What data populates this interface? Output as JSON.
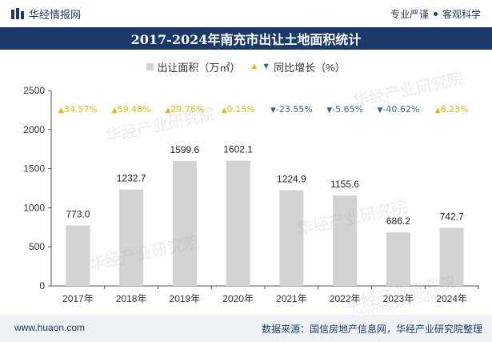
{
  "header": {
    "brand_name": "华经情报网",
    "tagline_1": "专业严谨",
    "tagline_2": "客观科学"
  },
  "watermarks": [
    "华经产业研究院",
    "www.huaon.com"
  ],
  "footer": {
    "website": "www.huaon.com",
    "source": "数据来源：国信房地产信息网，华经产业研究院整理"
  },
  "colors": {
    "bar": "#d3d3d3",
    "up": "#f0b400",
    "down": "#2e6c8c",
    "title_bg": "#1b3a6b"
  },
  "chart_data": {
    "type": "bar",
    "title": "2017-2024年南充市出让土地面积统计",
    "categories": [
      "2017年",
      "2018年",
      "2019年",
      "2020年",
      "2021年",
      "2022年",
      "2023年",
      "2024年"
    ],
    "series": [
      {
        "name": "出让面积（万㎡）",
        "values": [
          773.0,
          1232.7,
          1599.6,
          1602.1,
          1224.9,
          1155.6,
          686.2,
          742.7
        ],
        "labels": [
          "773.0",
          "1232.7",
          "1599.6",
          "1602.1",
          "1224.9",
          "1155.6",
          "686.2",
          "742.7"
        ]
      },
      {
        "name": "同比增长（%）",
        "values": [
          34.57,
          59.48,
          29.76,
          0.15,
          -23.55,
          -5.65,
          -40.62,
          8.23
        ],
        "labels": [
          "34.57%",
          "59.48%",
          "29.76%",
          "0.15%",
          "-23.55%",
          "-5.65%",
          "-40.62%",
          "8.23%"
        ]
      }
    ],
    "yticks": [
      "0",
      "500",
      "1000",
      "1500",
      "2000",
      "2500"
    ],
    "ylim": [
      0,
      2500
    ],
    "legend_position": "top-center",
    "grid": false
  }
}
